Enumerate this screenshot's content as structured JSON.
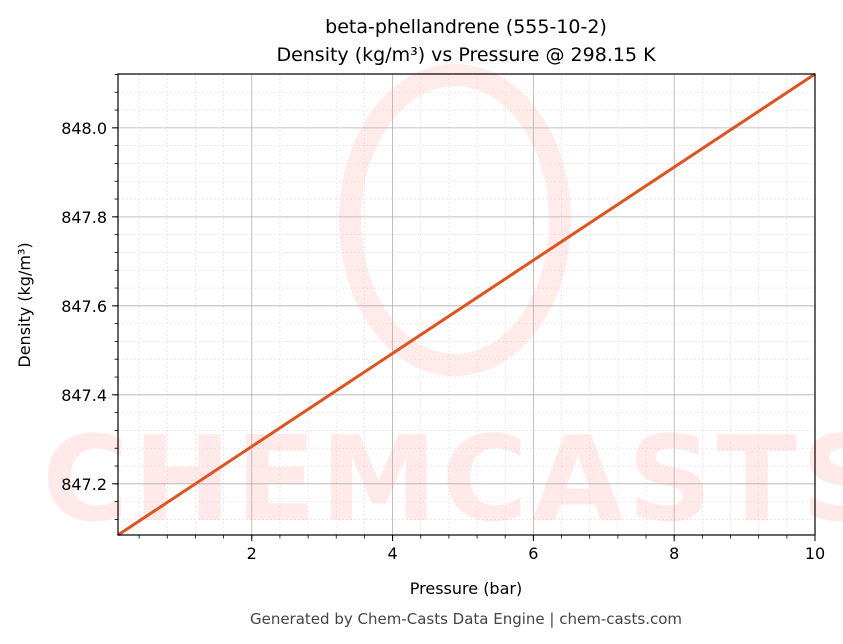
{
  "chart_data": {
    "type": "line",
    "title": "beta-phellandrene (555-10-2)",
    "subtitle": "Density (kg/m³) vs Pressure @ 298.15 K",
    "xlabel": "Pressure (bar)",
    "ylabel": "Density (kg/m³)",
    "xlim": [
      0.1,
      10
    ],
    "ylim": [
      847.085,
      848.121
    ],
    "xticks": [
      2,
      4,
      6,
      8,
      10
    ],
    "xtick_labels": [
      "2",
      "4",
      "6",
      "8",
      "10"
    ],
    "yticks": [
      847.2,
      847.4,
      847.6,
      847.8,
      848.0
    ],
    "ytick_labels": [
      "847.2",
      "847.4",
      "847.6",
      "847.8",
      "848.0"
    ],
    "grid": true,
    "series": [
      {
        "color": "#e0521f",
        "x": [
          0.1,
          10
        ],
        "y": [
          847.085,
          848.121
        ]
      }
    ]
  },
  "watermark": "CHEMCASTS",
  "footer": "Generated by Chem-Casts Data Engine | chem-casts.com"
}
